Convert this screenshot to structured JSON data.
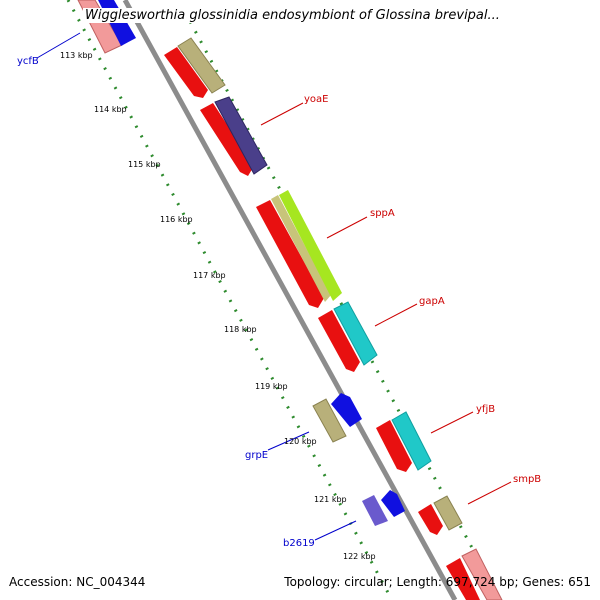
{
  "title": "Wigglesworthia glossinidia endosymbiont of Glossina brevipal...",
  "footer": {
    "accession": "Accession: NC_004344",
    "summary": "Topology: circular; Length: 697,724 bp; Genes: 651"
  },
  "scale": {
    "ticks": [
      "113 kbp",
      "114 kbp",
      "115 kbp",
      "116 kbp",
      "117 kbp",
      "118 kbp",
      "119 kbp",
      "120 kbp",
      "121 kbp",
      "122 kbp"
    ]
  },
  "genes": {
    "forward": [
      "yoaE",
      "sppA",
      "gapA",
      "yfjB",
      "smpB"
    ],
    "reverse": [
      "ycfB",
      "grpE",
      "b2619"
    ]
  },
  "colors": {
    "forward_label": "#cc0000",
    "reverse_label": "#0000cc",
    "cds": "#ff0000",
    "backbone": "#888888",
    "tick": "#228b22"
  }
}
